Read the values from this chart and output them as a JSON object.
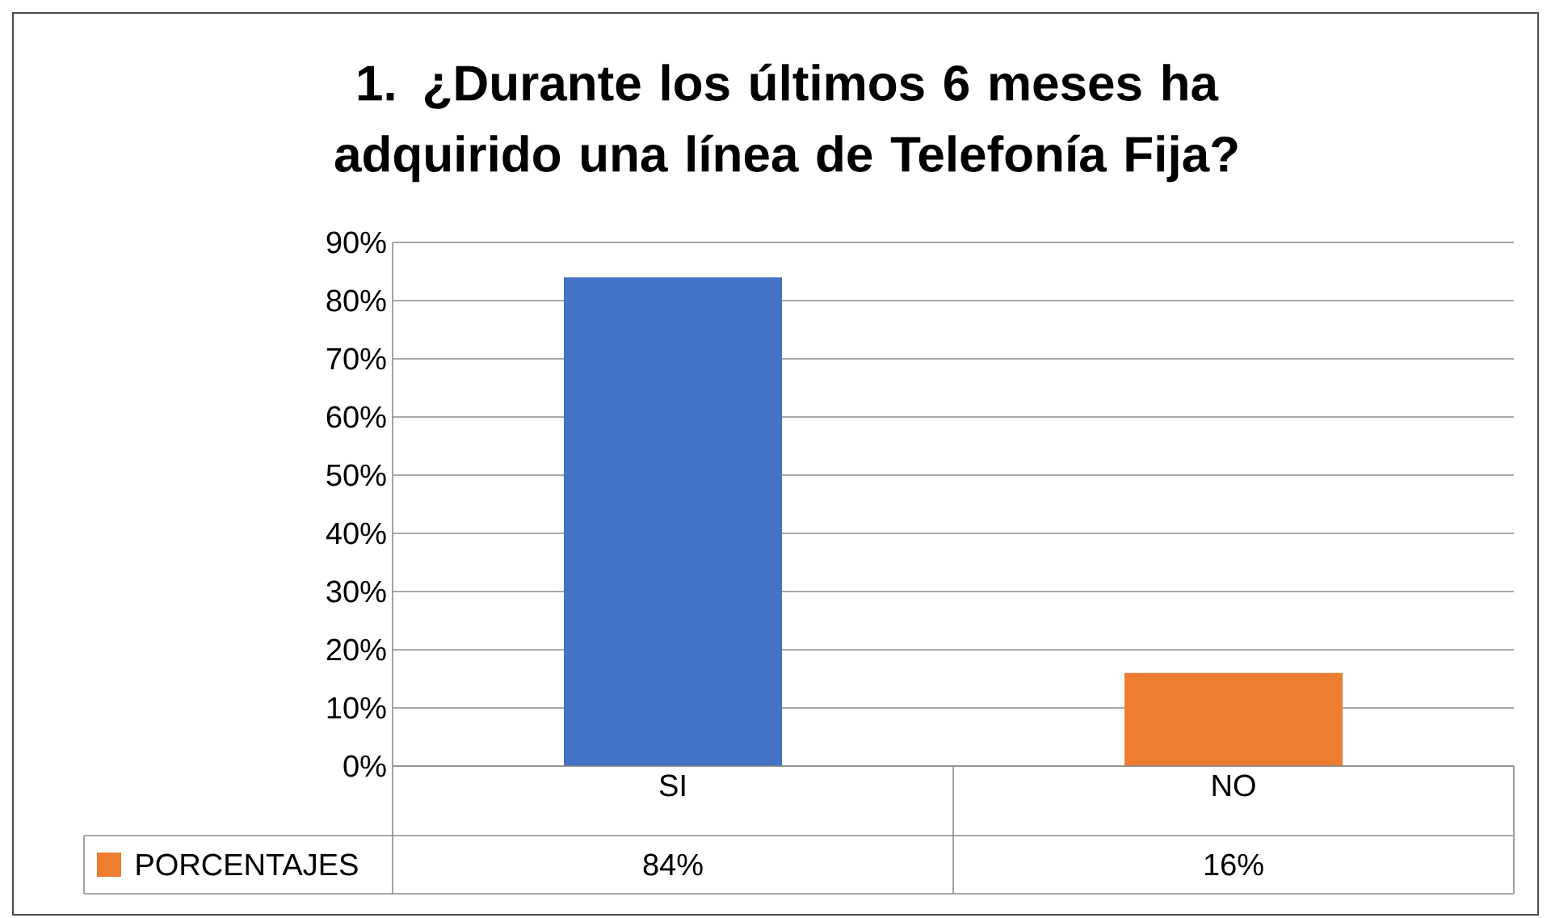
{
  "chart_data": {
    "type": "bar",
    "title": "1. ¿Durante los últimos 6 meses ha adquirido una línea de Telefonía Fija?",
    "categories": [
      "SI",
      "NO"
    ],
    "series": [
      {
        "name": "PORCENTAJES",
        "colors": [
          "#4472c4",
          "#ed7d31"
        ],
        "values": [
          84,
          16
        ],
        "value_labels": [
          "84%",
          "16%"
        ]
      }
    ],
    "ylim": [
      0,
      90
    ],
    "yticks": [
      {
        "value": 0,
        "label": "0%"
      },
      {
        "value": 10,
        "label": "10%"
      },
      {
        "value": 20,
        "label": "20%"
      },
      {
        "value": 30,
        "label": "30%"
      },
      {
        "value": 40,
        "label": "40%"
      },
      {
        "value": 50,
        "label": "50%"
      },
      {
        "value": 60,
        "label": "60%"
      },
      {
        "value": 70,
        "label": "70%"
      },
      {
        "value": 80,
        "label": "80%"
      },
      {
        "value": 90,
        "label": "90%"
      }
    ],
    "grid": "y",
    "legend": "bottom"
  }
}
